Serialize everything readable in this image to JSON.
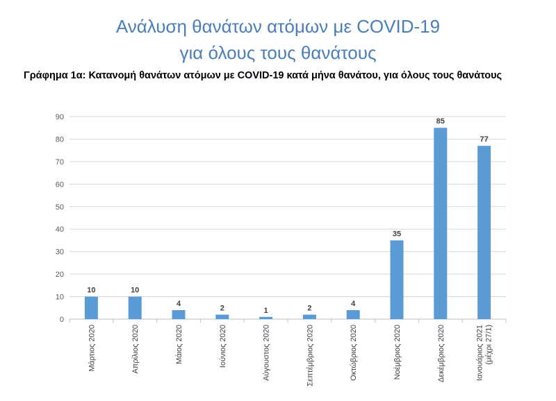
{
  "header": {
    "title_line1": "Ανάλυση θανάτων ατόμων με COVID-19",
    "title_line2": "για όλους τους θανάτους"
  },
  "caption": "Γράφημα 1α: Κατανομή θανάτων ατόμων με COVID-19 κατά μήνα θανάτου, για όλους τους θανάτους",
  "chart_data": {
    "type": "bar",
    "title": "",
    "xlabel": "",
    "ylabel": "",
    "categories": [
      "Μάρτιος 2020",
      "Απρίλιος 2020",
      "Μάιος 2020",
      "Ιούνιος 2020",
      "Αύγουστος 2020",
      "Σεπτέμβριος 2020",
      "Οκτώβριος 2020",
      "Νοέμβριος 2020",
      "Δεκέμβριος 2020",
      "Ιανουάριος 2021 (μέχρι 27/1)"
    ],
    "values": [
      10,
      10,
      4,
      2,
      1,
      2,
      4,
      35,
      85,
      77
    ],
    "ylim": [
      0,
      90
    ],
    "yticks": [
      0,
      10,
      20,
      30,
      40,
      50,
      60,
      70,
      80,
      90
    ],
    "grid": true,
    "legend": "none",
    "bar_color": "#5b9bd5",
    "grid_color": "#d9d9d9",
    "data_labels": true
  }
}
